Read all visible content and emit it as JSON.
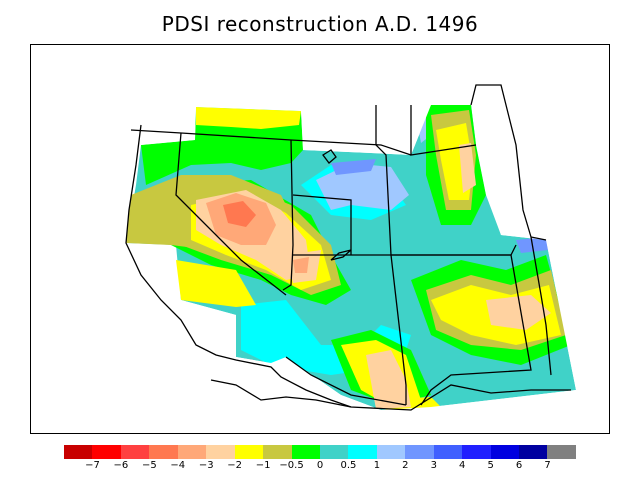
{
  "title": "PDSI reconstruction A.D. 1496",
  "legend": {
    "colors": [
      "#c80000",
      "#ff0000",
      "#ff4040",
      "#ff7850",
      "#ffa878",
      "#ffd2a0",
      "#ffff00",
      "#c8c840",
      "#00ff00",
      "#40d2c8",
      "#00ffff",
      "#a0c8ff",
      "#7096ff",
      "#4060ff",
      "#2020ff",
      "#0000e0",
      "#0000a0",
      "#808080"
    ],
    "labels": [
      "−7",
      "−6",
      "−5",
      "−4",
      "−3",
      "−2",
      "−1",
      "−0.5",
      "0",
      "0.5",
      "1",
      "2",
      "3",
      "4",
      "5",
      "6",
      "7"
    ]
  },
  "icons": {
    "map": "drought-severity-map"
  }
}
